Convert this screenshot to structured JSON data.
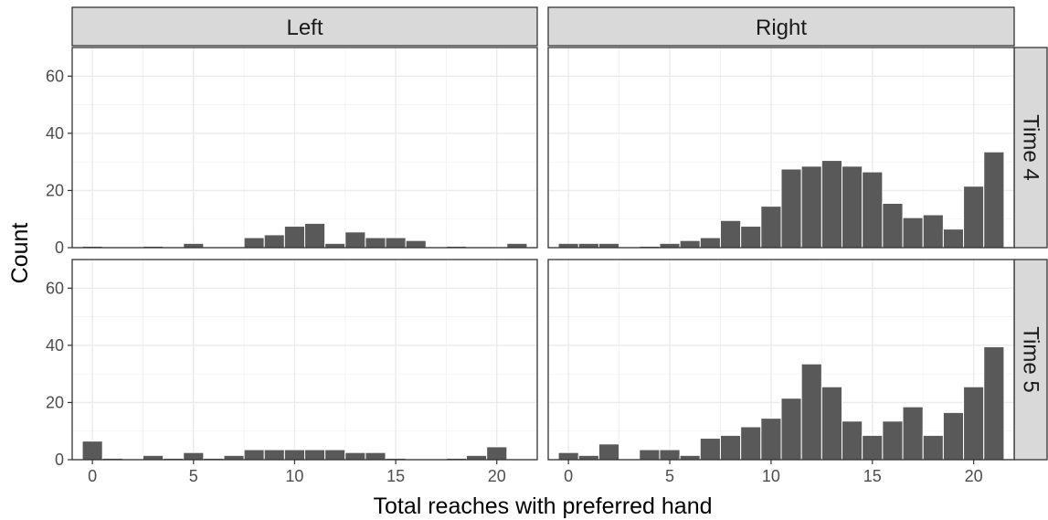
{
  "chart_data": {
    "type": "bar",
    "title": "",
    "xlabel": "Total reaches with preferred hand",
    "ylabel": "Count",
    "xlim": [
      -1,
      22
    ],
    "ylim": [
      0,
      70
    ],
    "xticks": [
      0,
      5,
      10,
      15,
      20
    ],
    "yticks": [
      0,
      20,
      40,
      60
    ],
    "grid": true,
    "bar_color": "#595959",
    "strip_color": "#d9d9d9",
    "columns": [
      "Left",
      "Right"
    ],
    "rows": [
      "Time 4",
      "Time 5"
    ],
    "x": [
      0,
      1,
      2,
      3,
      4,
      5,
      6,
      7,
      8,
      9,
      10,
      11,
      12,
      13,
      14,
      15,
      16,
      17,
      18,
      19,
      20,
      21
    ],
    "panels": [
      {
        "column": "Left",
        "row": "Time 4",
        "values": [
          0.5,
          0,
          0,
          0.5,
          0,
          1.5,
          0,
          0,
          3.5,
          4.5,
          7.5,
          8.5,
          1.5,
          5.5,
          3.5,
          3.5,
          2.5,
          0,
          0.5,
          0,
          0,
          1.5
        ]
      },
      {
        "column": "Right",
        "row": "Time 4",
        "values": [
          1.5,
          1.5,
          1.5,
          0,
          0.5,
          1.5,
          2.5,
          3.5,
          9.5,
          7.5,
          14.5,
          27.5,
          28.5,
          30.5,
          28.5,
          26.5,
          15.5,
          10.5,
          11.5,
          6.5,
          21.5,
          33.5
        ]
      },
      {
        "column": "Left",
        "row": "Time 5",
        "values": [
          6.5,
          0.5,
          0,
          1.5,
          0.5,
          2.5,
          0.5,
          1.5,
          3.5,
          3.5,
          3.5,
          3.5,
          3.5,
          2.5,
          2.5,
          0.5,
          0,
          0,
          0.5,
          1.5,
          4.5,
          0
        ]
      },
      {
        "column": "Right",
        "row": "Time 5",
        "values": [
          2.5,
          1.5,
          5.5,
          0,
          3.5,
          3.5,
          1.5,
          7.5,
          8.5,
          11.5,
          14.5,
          21.5,
          33.5,
          25.5,
          13.5,
          8.5,
          13.5,
          18.5,
          8.5,
          16.5,
          25.5,
          39.5
        ]
      }
    ]
  }
}
